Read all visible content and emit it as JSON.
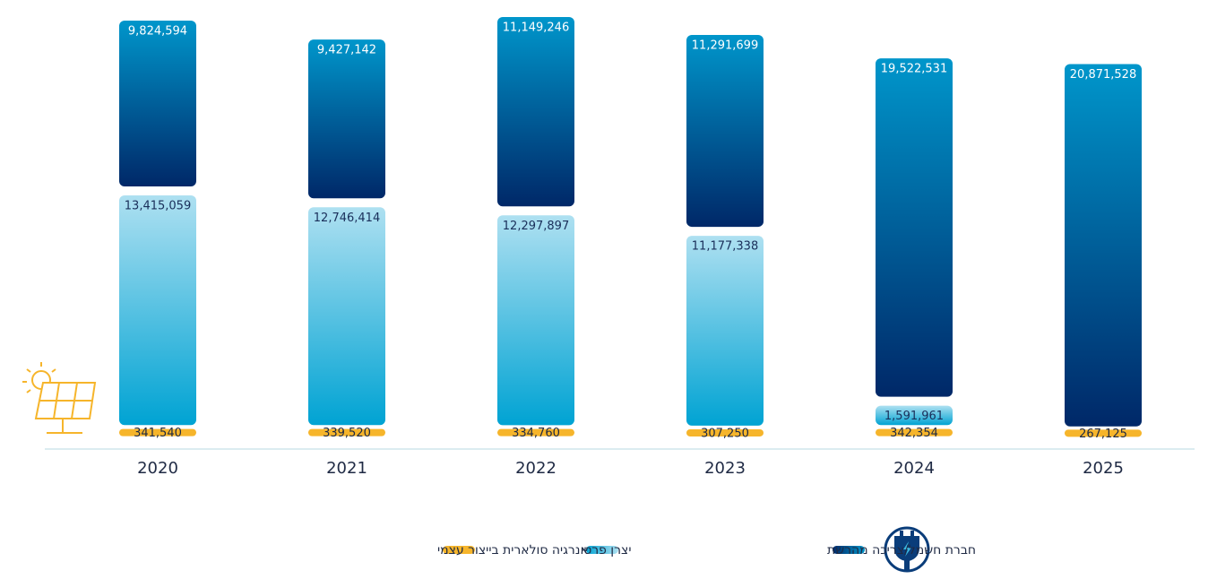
{
  "chart_data": {
    "type": "stacked_bar",
    "categories": [
      "2020",
      "2021",
      "2022",
      "2023",
      "2024",
      "2025"
    ],
    "series": [
      {
        "name": "אנרגיה סולארית בייצור עצמי",
        "color": "#f6b52b",
        "values": [
          341540,
          339520,
          334760,
          307250,
          342354,
          267125
        ],
        "value_labels": [
          "341,540",
          "339,520",
          "334,760",
          "307,250",
          "342,354",
          "267,125"
        ]
      },
      {
        "name": "יצרן פרטי",
        "color": "#3bb6de",
        "values": [
          13415059,
          12746414,
          12297897,
          11177338,
          1591961,
          null
        ],
        "value_labels": [
          "13,415,059",
          "12,746,414",
          "12,297,897",
          "11,177,338",
          "1,591,961",
          null
        ]
      },
      {
        "name": "חברת חשמל/צריכה מהרשת",
        "color": "#00427f",
        "values": [
          9824594,
          9427142,
          11149246,
          11291699,
          19522531,
          20871528
        ],
        "value_labels": [
          "9,824,594",
          "9,427,142",
          "11,149,246",
          "11,291,699",
          "19,522,531",
          "20,871,528"
        ]
      }
    ]
  }
}
